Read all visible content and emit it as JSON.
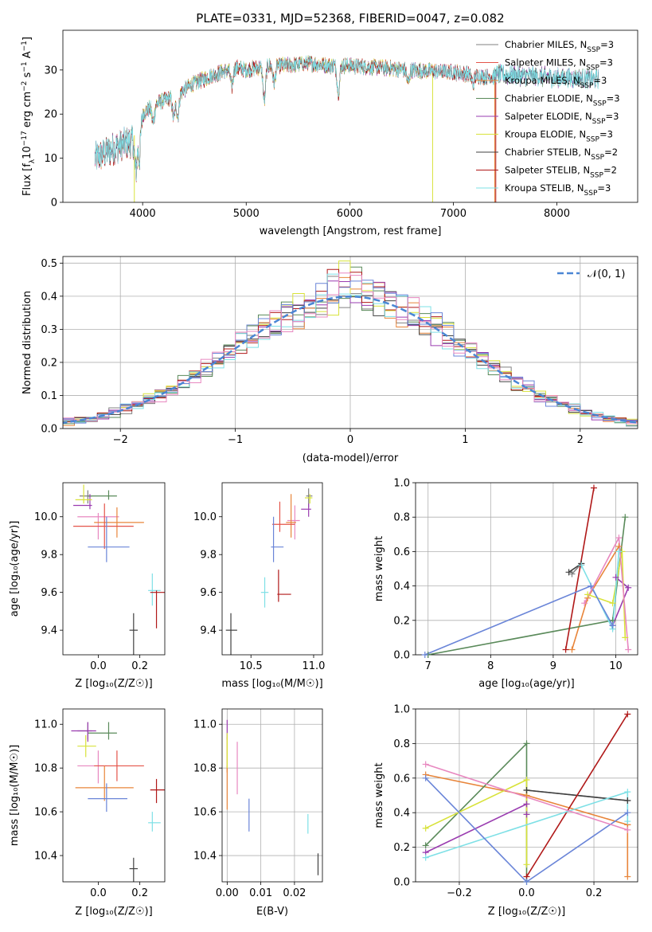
{
  "title": "PLATE=0331, MJD=52368, FIBERID=0047, z=0.082",
  "colors": [
    "#808080",
    "#e4544a",
    "#e8853a",
    "#5a8a5a",
    "#9a3cb0",
    "#d8e23a",
    "#404040",
    "#b01818",
    "#7ee0e6",
    "#6a85d8",
    "#e888c0"
  ],
  "models": [
    {
      "name": "Chabrier MILES, N$_{SSP}$=3",
      "label": "Chabrier MILES, N",
      "nssp": "3"
    },
    {
      "name": "Salpeter MILES, N_SSP=3",
      "label": "Salpeter MILES, N",
      "nssp": "3"
    },
    {
      "name": "Kroupa MILES, N_SSP=3",
      "label": "Kroupa MILES, N",
      "nssp": "3"
    },
    {
      "name": "Chabrier ELODIE, N_SSP=3",
      "label": "Chabrier ELODIE, N",
      "nssp": "3"
    },
    {
      "name": "Salpeter ELODIE, N_SSP=3",
      "label": "Salpeter ELODIE, N",
      "nssp": "3"
    },
    {
      "name": "Kroupa ELODIE, N_SSP=3",
      "label": "Kroupa ELODIE, N",
      "nssp": "3"
    },
    {
      "name": "Chabrier STELIB, N_SSP=2",
      "label": "Chabrier STELIB, N",
      "nssp": "2"
    },
    {
      "name": "Salpeter STELIB, N_SSP=2",
      "label": "Salpeter STELIB, N",
      "nssp": "2"
    },
    {
      "name": "Kroupa STELIB, N_SSP=3",
      "label": "Kroupa STELIB, N",
      "nssp": "3"
    }
  ],
  "chart_data": [
    {
      "id": "spectrum",
      "type": "line",
      "xlabel": "wavelength [Angstrom, rest frame]",
      "ylabel": "Flux [f_λ10^-17 erg cm^-2 s^-1 A^-1]",
      "xlim": [
        3230,
        8780
      ],
      "ylim": [
        0,
        39
      ],
      "xticks": [
        4000,
        5000,
        6000,
        7000,
        8000
      ],
      "yticks": [
        0,
        10,
        20,
        30
      ],
      "legend": "upper-right",
      "continuum": [
        [
          3540,
          10
        ],
        [
          3700,
          12
        ],
        [
          3900,
          14
        ],
        [
          4000,
          20
        ],
        [
          4100,
          22
        ],
        [
          4300,
          24
        ],
        [
          4500,
          27
        ],
        [
          4700,
          29
        ],
        [
          4900,
          30.5
        ],
        [
          5000,
          30
        ],
        [
          5200,
          31
        ],
        [
          5400,
          31
        ],
        [
          5600,
          31.5
        ],
        [
          5800,
          31
        ],
        [
          6000,
          31
        ],
        [
          6300,
          30.5
        ],
        [
          6600,
          30
        ],
        [
          7000,
          29.5
        ],
        [
          7300,
          28.5
        ],
        [
          7400,
          28.5
        ]
      ]
    },
    {
      "id": "residuals",
      "type": "line",
      "xlabel": "(data-model)/error",
      "ylabel": "Normed distribution",
      "xlim": [
        -2.5,
        2.5
      ],
      "ylim": [
        0,
        0.52
      ],
      "xticks": [
        -2,
        -1,
        0,
        1,
        2
      ],
      "yticks": [
        0.0,
        0.1,
        0.2,
        0.3,
        0.4,
        0.5
      ],
      "legend": "𝒩(0, 1)"
    },
    {
      "id": "z_age",
      "type": "scatter",
      "xlabel": "Z [log10(Z/Z☉)]",
      "ylabel": "age  [log10(age/yr)]",
      "xlim": [
        -0.17,
        0.32
      ],
      "ylim": [
        9.27,
        10.18
      ],
      "xticks": [
        0.0,
        0.2
      ],
      "yticks": [
        9.4,
        9.6,
        9.8,
        10.0
      ],
      "points": [
        [
          -0.05,
          10.11,
          0.04,
          0.02,
          0.04,
          0.03
        ],
        [
          0.05,
          10.11,
          0.1,
          0.04,
          0.02,
          0.03
        ],
        [
          -0.04,
          10.06,
          0.08,
          0.01,
          0.02,
          0.06
        ],
        [
          -0.07,
          10.09,
          0.04,
          0.04,
          0.02,
          0.08
        ],
        [
          0.0,
          10.0,
          0.1,
          0.1,
          0.12,
          0.02
        ],
        [
          0.09,
          9.97,
          0.11,
          0.13,
          0.08,
          0.08
        ],
        [
          0.03,
          9.95,
          0.15,
          0.14,
          0.12,
          0.12
        ],
        [
          0.04,
          9.84,
          0.09,
          0.11,
          0.08,
          0.16
        ],
        [
          0.26,
          9.61,
          0.02,
          0.04,
          0.08,
          0.09
        ],
        [
          0.28,
          9.6,
          0.03,
          0.2,
          0.19,
          0.01
        ],
        [
          0.17,
          9.4,
          0.02,
          0.02,
          0.25,
          0.09
        ]
      ]
    },
    {
      "id": "mass_age",
      "type": "scatter",
      "xlabel": "mass [log10(M/M☉)]",
      "ylabel": "",
      "xlim": [
        10.27,
        11.07
      ],
      "ylim": [
        9.27,
        10.18
      ],
      "xticks": [
        10.5,
        11.0
      ],
      "yticks": [
        9.4,
        9.6,
        9.8,
        10.0
      ],
      "points": [
        [
          10.96,
          10.11,
          0.02,
          0.03,
          0.06,
          0.04
        ],
        [
          10.97,
          10.1,
          0.04,
          0.02,
          0.03,
          0.02
        ],
        [
          10.96,
          10.04,
          0.06,
          0.02,
          0.04,
          0.03
        ],
        [
          10.85,
          9.98,
          0.06,
          0.04,
          0.1,
          0.08
        ],
        [
          10.82,
          9.97,
          0.04,
          0.04,
          0.08,
          0.15
        ],
        [
          10.73,
          9.96,
          0.06,
          0.12,
          0.04,
          0.12
        ],
        [
          10.68,
          9.84,
          0.02,
          0.08,
          0.08,
          0.16
        ],
        [
          10.61,
          9.6,
          0.03,
          0.03,
          0.08,
          0.08
        ],
        [
          10.72,
          9.59,
          0.01,
          0.1,
          0.04,
          0.13
        ],
        [
          10.34,
          9.4,
          0.04,
          0.05,
          0.25,
          0.09
        ]
      ]
    },
    {
      "id": "age_weight",
      "type": "line",
      "xlabel": "age  [log10(age/yr)]",
      "ylabel": "mass weight",
      "xlim": [
        6.8,
        10.35
      ],
      "ylim": [
        0,
        1
      ],
      "xticks": [
        7,
        8,
        9,
        10
      ],
      "yticks": [
        0.0,
        0.2,
        0.4,
        0.6,
        0.8,
        1.0
      ],
      "series": [
        {
          "c": 0,
          "x": [
            9.3,
            9.45
          ],
          "y": [
            0.47,
            0.53
          ]
        },
        {
          "c": 2,
          "x": [
            9.3,
            9.55,
            10.05
          ],
          "y": [
            0.03,
            0.33,
            0.63
          ]
        },
        {
          "c": 3,
          "x": [
            7.0,
            9.95,
            10.15
          ],
          "y": [
            0.0,
            0.2,
            0.8
          ]
        },
        {
          "c": 4,
          "x": [
            9.95,
            10.2,
            10.0
          ],
          "y": [
            0.17,
            0.39,
            0.45
          ]
        },
        {
          "c": 5,
          "x": [
            9.55,
            9.95,
            10.1,
            10.15
          ],
          "y": [
            0.35,
            0.3,
            0.6,
            0.1
          ]
        },
        {
          "c": 6,
          "x": [
            9.25,
            9.45
          ],
          "y": [
            0.48,
            0.53
          ]
        },
        {
          "c": 7,
          "x": [
            9.2,
            9.65
          ],
          "y": [
            0.03,
            0.97
          ]
        },
        {
          "c": 8,
          "x": [
            9.45,
            9.95,
            10.05
          ],
          "y": [
            0.52,
            0.15,
            0.6
          ]
        },
        {
          "c": 9,
          "x": [
            6.95,
            9.6,
            9.95
          ],
          "y": [
            0.0,
            0.4,
            0.17
          ]
        },
        {
          "c": 10,
          "x": [
            9.5,
            10.05,
            10.2
          ],
          "y": [
            0.3,
            0.68,
            0.03
          ]
        }
      ]
    },
    {
      "id": "z_mass",
      "type": "scatter",
      "xlabel": "Z [log10(Z/Z☉)]",
      "ylabel": "mass [log10(M/M☉)]",
      "xlim": [
        -0.17,
        0.32
      ],
      "ylim": [
        10.28,
        11.07
      ],
      "xticks": [
        0.0,
        0.2
      ],
      "yticks": [
        10.4,
        10.6,
        10.8,
        11.0
      ],
      "points": [
        [
          -0.05,
          10.97,
          0.05,
          0.02,
          0.04,
          0.04
        ],
        [
          0.05,
          10.96,
          0.1,
          0.04,
          0.03,
          0.05
        ],
        [
          -0.05,
          10.97,
          0.08,
          0.04,
          0.05,
          0.04
        ],
        [
          -0.06,
          10.9,
          0.04,
          0.05,
          0.05,
          0.05
        ],
        [
          0.0,
          10.81,
          0.1,
          0.04,
          0.08,
          0.07
        ],
        [
          0.09,
          10.81,
          0.11,
          0.13,
          0.07,
          0.07
        ],
        [
          0.03,
          10.71,
          0.14,
          0.14,
          0.06,
          0.1
        ],
        [
          0.04,
          10.66,
          0.09,
          0.1,
          0.06,
          0.07
        ],
        [
          0.26,
          10.55,
          0.02,
          0.04,
          0.04,
          0.05
        ],
        [
          0.28,
          10.7,
          0.03,
          0.2,
          0.06,
          0.05
        ],
        [
          0.17,
          10.34,
          0.02,
          0.02,
          0.07,
          0.05
        ]
      ]
    },
    {
      "id": "ebv_mass",
      "type": "scatter",
      "xlabel": "E(B-V)",
      "ylabel": "",
      "xlim": [
        -0.0015,
        0.0283
      ],
      "ylim": [
        10.28,
        11.07
      ],
      "xticks": [
        0.0,
        0.01,
        0.02
      ],
      "yticks": [
        10.4,
        10.6,
        10.8,
        11.0
      ],
      "points": [
        [
          0.0,
          10.98,
          0,
          0,
          0.05,
          0.04
        ],
        [
          0.0,
          10.86,
          0,
          0,
          0.08,
          0.08
        ],
        [
          0.0,
          10.71,
          0,
          0,
          0.1,
          0.1
        ],
        [
          0.0,
          10.9,
          0,
          0,
          0.1,
          0.06
        ],
        [
          0.003,
          10.81,
          0,
          0,
          0.13,
          0.11
        ],
        [
          0.0065,
          10.6,
          0,
          0,
          0.09,
          0.06
        ],
        [
          0.024,
          10.55,
          0,
          0,
          0.05,
          0.04
        ],
        [
          0.027,
          10.36,
          0,
          0,
          0.05,
          0.05
        ]
      ]
    },
    {
      "id": "z_weight",
      "type": "line",
      "xlabel": "Z [log10(Z/Z☉)]",
      "ylabel": "mass weight",
      "xlim": [
        -0.33,
        0.33
      ],
      "ylim": [
        0,
        1
      ],
      "xticks": [
        -0.2,
        0.0,
        0.2
      ],
      "yticks": [
        0.0,
        0.2,
        0.4,
        0.6,
        0.8,
        1.0
      ],
      "series": [
        {
          "c": 0,
          "x": [
            0.0,
            0.3
          ],
          "y": [
            0.53,
            0.47
          ]
        },
        {
          "c": 2,
          "x": [
            -0.3,
            0.0,
            0.3
          ],
          "y": [
            0.62,
            0.5,
            0.33
          ]
        },
        {
          "c": 2,
          "x": [
            0.3,
            0.3
          ],
          "y": [
            0.33,
            0.03
          ]
        },
        {
          "c": 3,
          "x": [
            -0.3,
            0.0,
            0.0
          ],
          "y": [
            0.21,
            0.8,
            0.0
          ]
        },
        {
          "c": 4,
          "x": [
            -0.3,
            0.0,
            0.0
          ],
          "y": [
            0.17,
            0.45,
            0.39
          ]
        },
        {
          "c": 5,
          "x": [
            -0.3,
            0.0,
            0.0
          ],
          "y": [
            0.31,
            0.59,
            0.1
          ]
        },
        {
          "c": 6,
          "x": [
            0.0,
            0.3
          ],
          "y": [
            0.53,
            0.47
          ]
        },
        {
          "c": 7,
          "x": [
            0.0,
            0.3
          ],
          "y": [
            0.03,
            0.97
          ]
        },
        {
          "c": 8,
          "x": [
            -0.3,
            0.3,
            0.3
          ],
          "y": [
            0.14,
            0.52,
            0.35
          ]
        },
        {
          "c": 9,
          "x": [
            -0.3,
            0.0,
            0.3
          ],
          "y": [
            0.6,
            0.0,
            0.4
          ]
        },
        {
          "c": 10,
          "x": [
            -0.3,
            0.3
          ],
          "y": [
            0.68,
            0.3
          ]
        }
      ]
    }
  ]
}
